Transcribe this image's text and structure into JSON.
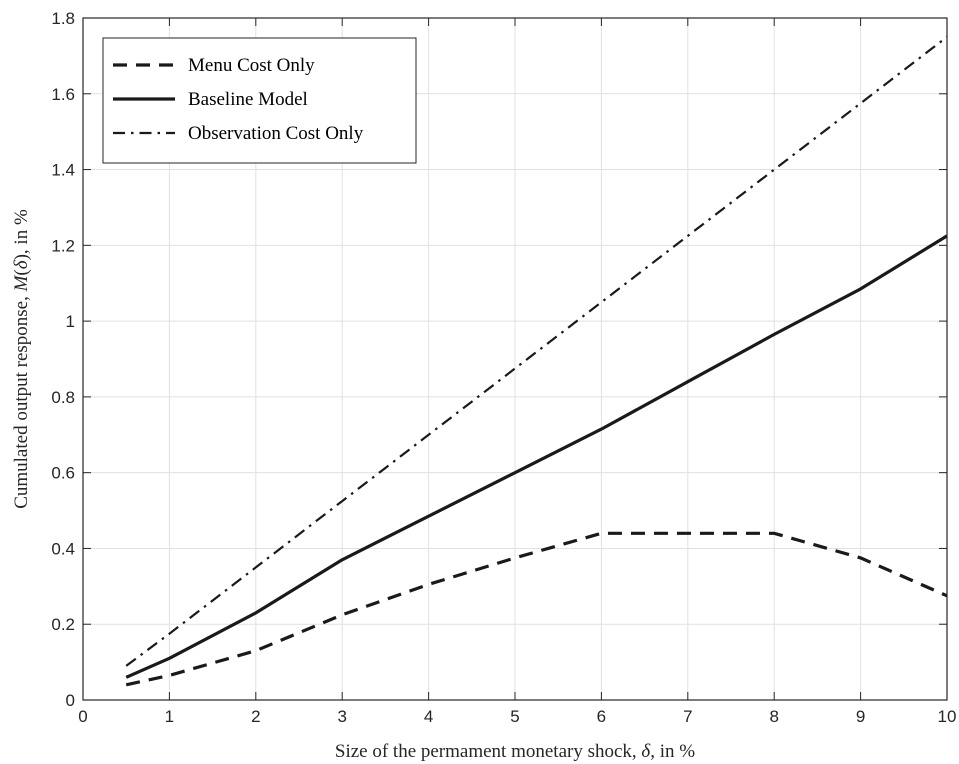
{
  "chart_data": {
    "type": "line",
    "title": "",
    "xlabel_parts": [
      "Size of the permament monetary shock, ",
      "δ",
      ", in %"
    ],
    "ylabel_parts": [
      "Cumulated output response, ",
      "M",
      "(",
      "δ",
      "), in %"
    ],
    "xlim": [
      0,
      10
    ],
    "ylim": [
      0,
      1.8
    ],
    "xticks": [
      0,
      1,
      2,
      3,
      4,
      5,
      6,
      7,
      8,
      9,
      10
    ],
    "yticks": [
      0,
      0.2,
      0.4,
      0.6,
      0.8,
      1,
      1.2,
      1.4,
      1.6,
      1.8
    ],
    "ytick_labels": [
      "0",
      "0.2",
      "0.4",
      "0.6",
      "0.8",
      "1",
      "1.2",
      "1.4",
      "1.6",
      "1.8"
    ],
    "grid": true,
    "legend_position": "top-left",
    "series": [
      {
        "name": "Menu Cost Only",
        "style": "dashed",
        "color": "#1a1a1a",
        "x": [
          0.5,
          1,
          2,
          3,
          4,
          5,
          6,
          7,
          8,
          9,
          10
        ],
        "y": [
          0.04,
          0.065,
          0.13,
          0.225,
          0.305,
          0.375,
          0.44,
          0.44,
          0.44,
          0.375,
          0.275
        ]
      },
      {
        "name": "Baseline Model",
        "style": "solid",
        "color": "#1a1a1a",
        "x": [
          0.5,
          1,
          2,
          3,
          4,
          5,
          6,
          7,
          8,
          9,
          10
        ],
        "y": [
          0.06,
          0.11,
          0.23,
          0.37,
          0.485,
          0.6,
          0.715,
          0.84,
          0.965,
          1.085,
          1.225
        ]
      },
      {
        "name": "Observation Cost Only",
        "style": "dashdot",
        "color": "#1a1a1a",
        "x": [
          0.5,
          1,
          2,
          3,
          4,
          5,
          6,
          7,
          8,
          9,
          10
        ],
        "y": [
          0.09,
          0.175,
          0.35,
          0.525,
          0.7,
          0.875,
          1.05,
          1.225,
          1.4,
          1.575,
          1.75
        ]
      }
    ]
  }
}
